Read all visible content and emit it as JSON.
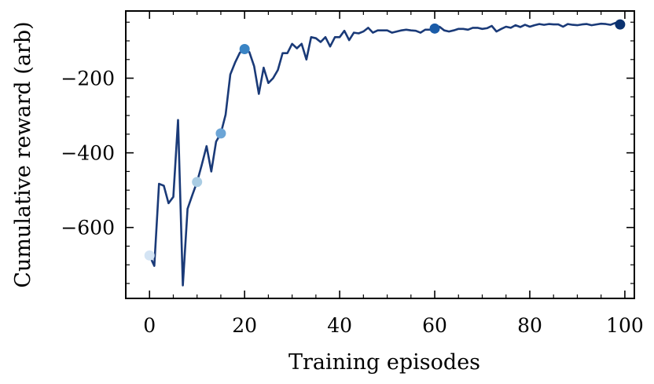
{
  "chart_data": {
    "type": "line",
    "title": "",
    "xlabel": "Training episodes",
    "ylabel": "Cumulative reward (arb)",
    "xlim": [
      -5,
      102
    ],
    "ylim": [
      -790,
      -20
    ],
    "xticks": [
      0,
      20,
      40,
      60,
      80,
      100
    ],
    "xtick_labels": [
      "0",
      "20",
      "40",
      "60",
      "80",
      "100"
    ],
    "yticks": [
      -200,
      -400,
      -600
    ],
    "ytick_labels": [
      "−200",
      "−400",
      "−600"
    ],
    "grid": false,
    "line_color": "#1a3a78",
    "series": [
      {
        "x": [
          0,
          1,
          2,
          3,
          4,
          5,
          6,
          7,
          8,
          9,
          10,
          11,
          12,
          13,
          14,
          15,
          16,
          17,
          18,
          19,
          20,
          21,
          22,
          23,
          24,
          25,
          26,
          27,
          28,
          29,
          30,
          31,
          32,
          33,
          34,
          35,
          36,
          37,
          38,
          39,
          40,
          41,
          42,
          43,
          44,
          45,
          46,
          47,
          48,
          49,
          50,
          51,
          52,
          53,
          54,
          55,
          56,
          57,
          58,
          59,
          60,
          61,
          62,
          63,
          64,
          65,
          66,
          67,
          68,
          69,
          70,
          71,
          72,
          73,
          74,
          75,
          76,
          77,
          78,
          79,
          80,
          81,
          82,
          83,
          84,
          85,
          86,
          87,
          88,
          89,
          90,
          91,
          92,
          93,
          94,
          95,
          96,
          97,
          98,
          99
        ],
        "y": [
          -675,
          -703,
          -483,
          -488,
          -535,
          -518,
          -312,
          -755,
          -550,
          -513,
          -478,
          -432,
          -382,
          -450,
          -370,
          -348,
          -298,
          -190,
          -158,
          -132,
          -122,
          -130,
          -168,
          -242,
          -172,
          -213,
          -200,
          -178,
          -133,
          -133,
          -108,
          -120,
          -108,
          -150,
          -90,
          -93,
          -103,
          -90,
          -115,
          -90,
          -90,
          -73,
          -98,
          -78,
          -80,
          -75,
          -65,
          -78,
          -72,
          -72,
          -72,
          -78,
          -75,
          -72,
          -70,
          -72,
          -73,
          -78,
          -70,
          -70,
          -67,
          -62,
          -72,
          -75,
          -72,
          -68,
          -68,
          -70,
          -65,
          -65,
          -68,
          -66,
          -60,
          -75,
          -68,
          -62,
          -65,
          -58,
          -63,
          -57,
          -62,
          -58,
          -55,
          -57,
          -55,
          -56,
          -56,
          -62,
          -55,
          -57,
          -58,
          -56,
          -55,
          -58,
          -56,
          -54,
          -55,
          -57,
          -52,
          -56
        ]
      }
    ],
    "markers": [
      {
        "x": 0,
        "y": -675,
        "color": "#d4e4f4"
      },
      {
        "x": 10,
        "y": -478,
        "color": "#a9cce3"
      },
      {
        "x": 15,
        "y": -348,
        "color": "#6ca5d6"
      },
      {
        "x": 20,
        "y": -122,
        "color": "#3a84c4"
      },
      {
        "x": 60,
        "y": -67,
        "color": "#1a5ca8"
      },
      {
        "x": 99,
        "y": -56,
        "color": "#0b3270"
      }
    ]
  }
}
